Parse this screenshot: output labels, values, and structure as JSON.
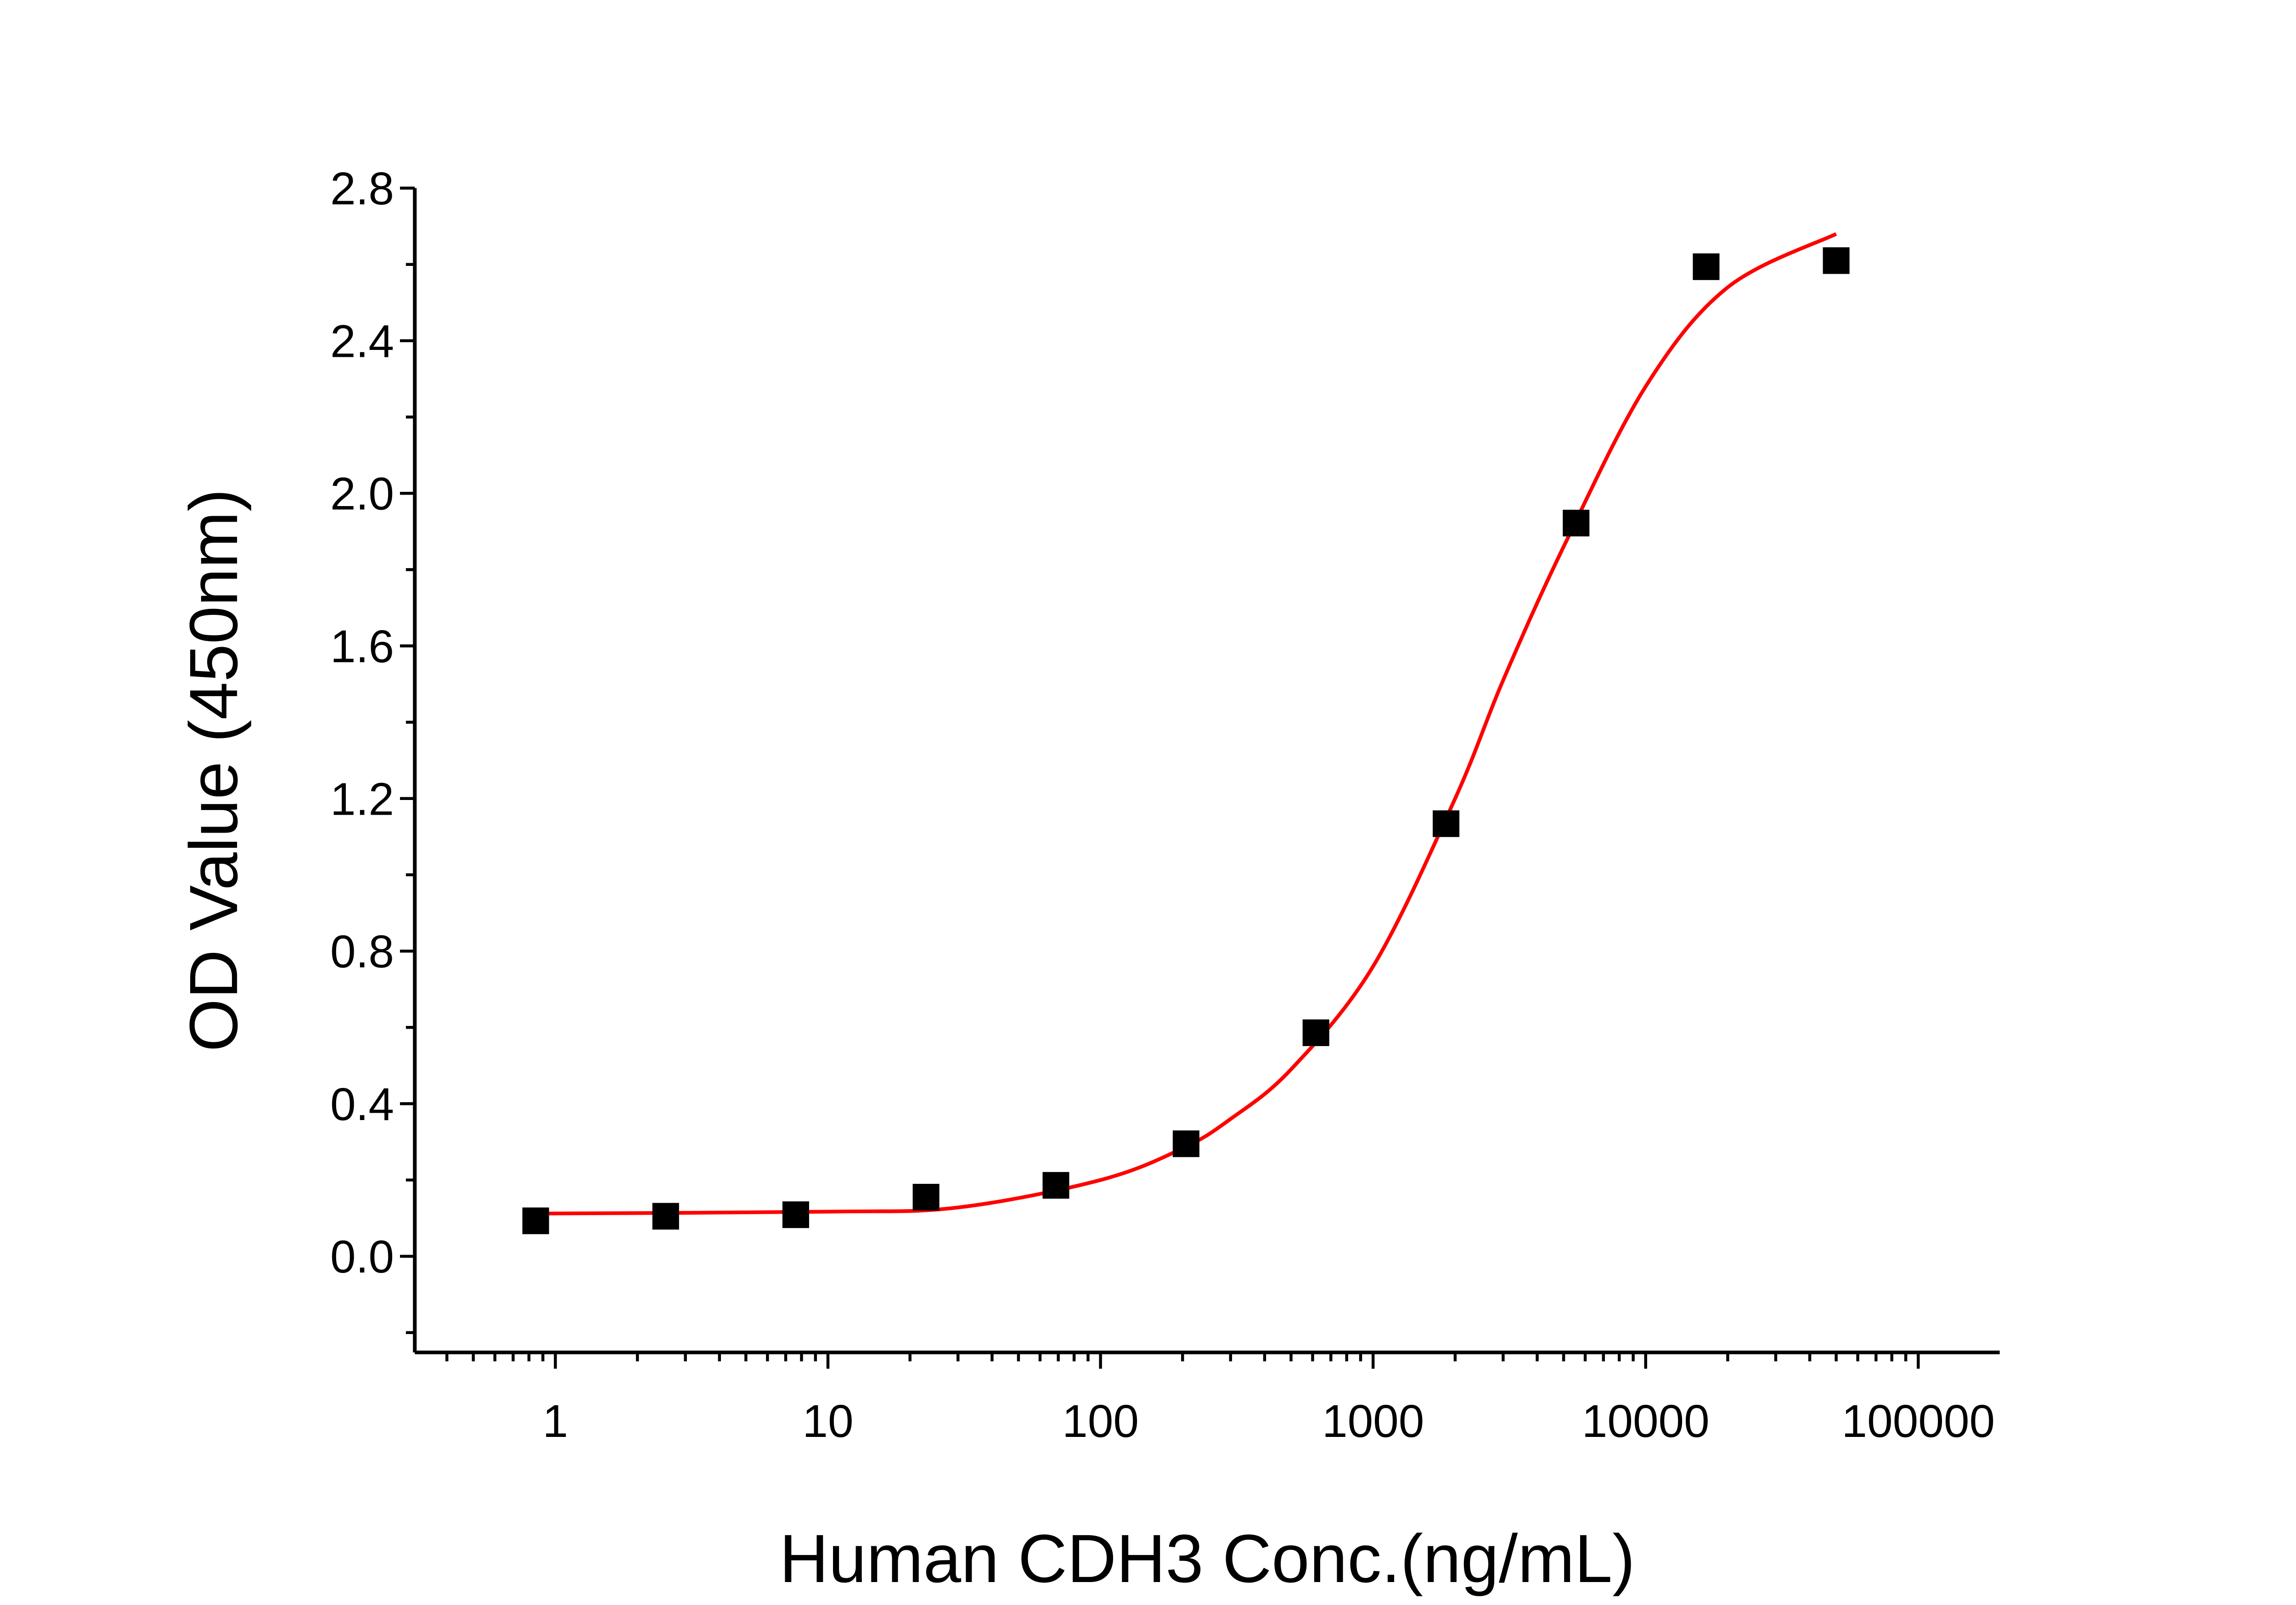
{
  "chart_data": {
    "type": "scatter",
    "x_label": "Human CDH3 Conc.(ng/mL)",
    "y_label": "OD Value (450nm)",
    "x_scale": "log",
    "xlim": [
      0.305,
      199000
    ],
    "ylim": [
      -0.252,
      2.8
    ],
    "xticks": [
      1,
      10,
      100,
      1000,
      10000,
      100000
    ],
    "yticks": [
      {
        "value": 0,
        "label": "0.0"
      },
      0.4,
      0.8,
      1.2,
      1.6,
      {
        "value": 2,
        "label": "2.0"
      },
      2.4,
      2.8
    ],
    "yminorticks": [
      -0.2,
      0.2,
      0.6,
      1,
      1.4,
      1.8,
      2.2,
      2.6
    ],
    "series": [
      {
        "kind": "points",
        "color": "#000000",
        "x": [
          0.847,
          2.54,
          7.62,
          22.9,
          68.6,
          206,
          617,
          1852,
          5556,
          16667,
          50000
        ],
        "values": [
          0.093,
          0.105,
          0.109,
          0.155,
          0.186,
          0.295,
          0.586,
          1.134,
          1.922,
          2.594,
          2.61
        ]
      },
      {
        "kind": "line",
        "color": "#ff0000",
        "x": [
          0.847,
          10,
          30,
          100,
          200,
          300,
          500,
          1000,
          2000,
          3000,
          5000,
          10000,
          20000,
          50000
        ],
        "values": [
          0.112,
          0.117,
          0.128,
          0.2,
          0.283,
          0.36,
          0.49,
          0.76,
          1.2,
          1.51,
          1.86,
          2.28,
          2.54,
          2.68
        ]
      }
    ]
  }
}
